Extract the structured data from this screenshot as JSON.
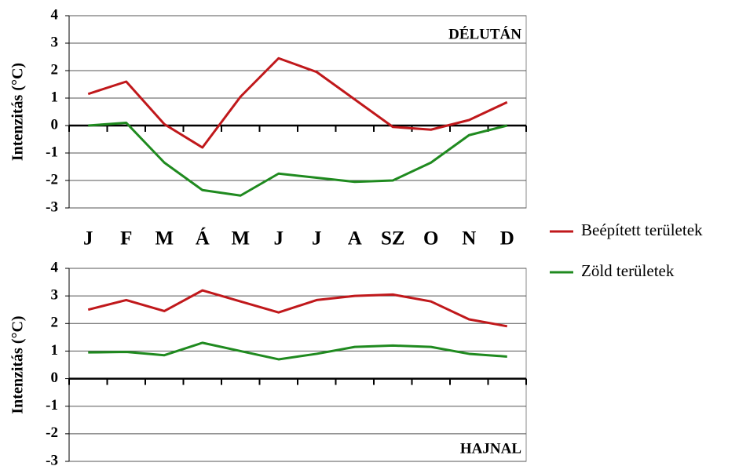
{
  "chart_data": [
    {
      "type": "line",
      "annotation": "DÉLUTÁN",
      "y_label": "Intenzitás (°C)",
      "categories": [
        "J",
        "F",
        "M",
        "Á",
        "M",
        "J",
        "J",
        "A",
        "SZ",
        "O",
        "N",
        "D"
      ],
      "series": [
        {
          "name": "Beépített területek",
          "color": "#c0181b",
          "values": [
            1.15,
            1.6,
            0.05,
            -0.8,
            1.05,
            2.45,
            1.95,
            0.95,
            -0.05,
            -0.15,
            0.2,
            0.85
          ]
        },
        {
          "name": "Zöld területek",
          "color": "#1f8a1f",
          "values": [
            0,
            0.1,
            -1.35,
            -2.35,
            -2.55,
            -1.75,
            -1.9,
            -2.05,
            -2.0,
            -1.35,
            -0.35,
            0.0
          ]
        }
      ],
      "ylim": [
        -3,
        4
      ],
      "yticks": [
        -3,
        -2,
        -1,
        0,
        1,
        2,
        3,
        4
      ],
      "grid": true
    },
    {
      "type": "line",
      "annotation": "HAJNAL",
      "y_label": "Intenzitás (°C)",
      "series": [
        {
          "color": "#c0181b",
          "values": [
            2.5,
            2.85,
            2.45,
            3.2,
            2.8,
            2.4,
            2.85,
            3.0,
            3.05,
            2.8,
            2.15,
            1.9
          ]
        },
        {
          "color": "#1f8a1f",
          "values": [
            0.95,
            0.97,
            0.85,
            1.3,
            1.0,
            0.7,
            0.9,
            1.15,
            1.2,
            1.15,
            0.9,
            0.8
          ]
        }
      ],
      "ylim": [
        -3,
        4
      ],
      "yticks": [
        -3,
        -2,
        -1,
        0,
        1,
        2,
        3,
        4
      ],
      "grid": true
    }
  ]
}
